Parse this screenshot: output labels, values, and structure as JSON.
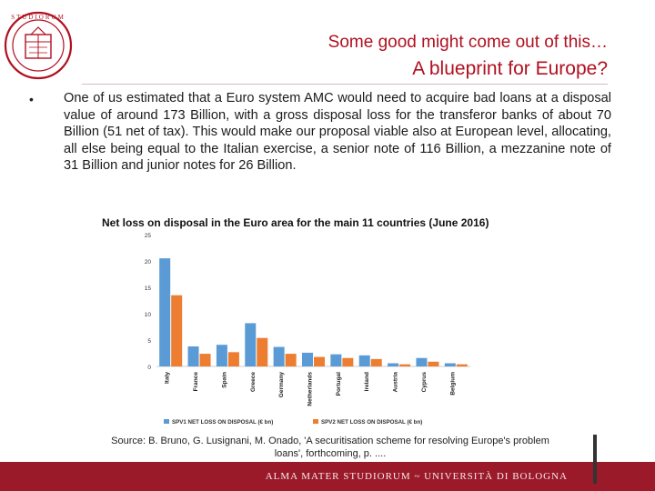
{
  "slide": {
    "title_line1": "Some good might come out of this…",
    "title_line2": "A blueprint for Europe?",
    "bullet_symbol": "•",
    "body": "One of us estimated that a Euro system AMC would need to acquire bad loans at a disposal value of around 173 Billion, with a gross disposal loss for the transferor banks of about 70 Billion (51 net of tax). This would make our proposal viable also at European level, allocating, all else being equal to the Italian exercise, a senior note of 116 Billion, a mezzanine note of 31 Billion and junior notes for 26 Billion.",
    "chart_caption": "Net loss on disposal in the Euro area for the main 11 countries (June 2016)",
    "source": "Source: B. Bruno, G. Lusignani, M. Onado, 'A securitisation scheme for resolving Europe's problem loans', forthcoming, p. ....",
    "footer": "ALMA MATER STUDIORUM ~ UNIVERSITÀ DI BOLOGNA",
    "colors": {
      "accent": "#b01020",
      "footer": "#9a1a2a",
      "series1": "#5b9bd5",
      "series2": "#ed7d31"
    }
  },
  "chart_data": {
    "type": "bar",
    "title": "Net loss on disposal in the Euro area for the main 11 countries (June 2016)",
    "categories": [
      "Italy",
      "France",
      "Spain",
      "Greece",
      "Germany",
      "Netherlands",
      "Portugal",
      "Ireland",
      "Austria",
      "Cyprus",
      "Belgium"
    ],
    "series": [
      {
        "name": "SPV1 NET LOSS ON DISPOSAL (€ bn)",
        "color": "#5b9bd5",
        "values": [
          20.5,
          3.8,
          4.1,
          8.2,
          3.7,
          2.6,
          2.3,
          2.1,
          0.6,
          1.6,
          0.6
        ]
      },
      {
        "name": "SPV2 NET LOSS ON DISPOSAL (€ bn)",
        "color": "#ed7d31",
        "values": [
          13.5,
          2.4,
          2.7,
          5.4,
          2.4,
          1.8,
          1.6,
          1.4,
          0.4,
          0.9,
          0.4
        ]
      }
    ],
    "yticks": [
      0,
      5,
      10,
      15,
      20,
      25
    ],
    "ylim": [
      0,
      25
    ],
    "grid": false,
    "legend": "bottom"
  }
}
